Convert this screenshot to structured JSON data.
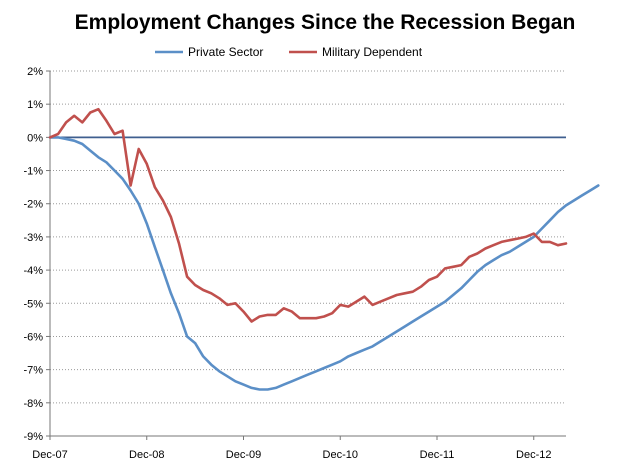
{
  "chart_data": {
    "type": "line",
    "title": "Employment Changes Since the Recession Began",
    "xlabel": "",
    "ylabel": "",
    "x_ticks": [
      "Dec-07",
      "Dec-08",
      "Dec-09",
      "Dec-10",
      "Dec-11",
      "Dec-12"
    ],
    "y_ticks": [
      "2%",
      "1%",
      "0%",
      "-1%",
      "-2%",
      "-3%",
      "-4%",
      "-5%",
      "-6%",
      "-7%",
      "-8%",
      "-9%"
    ],
    "ylim": [
      -9,
      2
    ],
    "x_range_months": [
      0,
      64
    ],
    "grid": "horizontal dotted",
    "legend_position": "top-center",
    "series": [
      {
        "name": "Private Sector",
        "color": "#5B8FC7",
        "points": [
          [
            0,
            0
          ],
          [
            1,
            0
          ],
          [
            2,
            -0.05
          ],
          [
            3,
            -0.1
          ],
          [
            4,
            -0.2
          ],
          [
            5,
            -0.4
          ],
          [
            6,
            -0.6
          ],
          [
            7,
            -0.75
          ],
          [
            8,
            -1.0
          ],
          [
            9,
            -1.25
          ],
          [
            10,
            -1.6
          ],
          [
            11,
            -2.0
          ],
          [
            12,
            -2.6
          ],
          [
            13,
            -3.3
          ],
          [
            14,
            -4.0
          ],
          [
            15,
            -4.7
          ],
          [
            16,
            -5.3
          ],
          [
            17,
            -6.0
          ],
          [
            18,
            -6.2
          ],
          [
            19,
            -6.6
          ],
          [
            20,
            -6.85
          ],
          [
            21,
            -7.05
          ],
          [
            22,
            -7.2
          ],
          [
            23,
            -7.35
          ],
          [
            24,
            -7.45
          ],
          [
            25,
            -7.55
          ],
          [
            26,
            -7.6
          ],
          [
            27,
            -7.6
          ],
          [
            28,
            -7.55
          ],
          [
            29,
            -7.45
          ],
          [
            30,
            -7.35
          ],
          [
            31,
            -7.25
          ],
          [
            32,
            -7.15
          ],
          [
            33,
            -7.05
          ],
          [
            34,
            -6.95
          ],
          [
            35,
            -6.85
          ],
          [
            36,
            -6.75
          ],
          [
            37,
            -6.6
          ],
          [
            38,
            -6.5
          ],
          [
            39,
            -6.4
          ],
          [
            40,
            -6.3
          ],
          [
            41,
            -6.15
          ],
          [
            42,
            -6.0
          ],
          [
            43,
            -5.85
          ],
          [
            44,
            -5.7
          ],
          [
            45,
            -5.55
          ],
          [
            46,
            -5.4
          ],
          [
            47,
            -5.25
          ],
          [
            48,
            -5.1
          ],
          [
            49,
            -4.95
          ],
          [
            50,
            -4.75
          ],
          [
            51,
            -4.55
          ],
          [
            52,
            -4.3
          ],
          [
            53,
            -4.05
          ],
          [
            54,
            -3.85
          ],
          [
            55,
            -3.7
          ],
          [
            56,
            -3.55
          ],
          [
            57,
            -3.45
          ],
          [
            58,
            -3.3
          ],
          [
            59,
            -3.15
          ],
          [
            60,
            -3.0
          ],
          [
            61,
            -2.75
          ],
          [
            62,
            -2.5
          ],
          [
            63,
            -2.25
          ],
          [
            64,
            -2.05
          ],
          [
            65,
            -1.9
          ],
          [
            66,
            -1.75
          ],
          [
            67,
            -1.6
          ],
          [
            68,
            -1.45
          ]
        ]
      },
      {
        "name": "Military Dependent",
        "color": "#C0504D",
        "points": [
          [
            0,
            0
          ],
          [
            1,
            0.1
          ],
          [
            2,
            0.45
          ],
          [
            3,
            0.65
          ],
          [
            4,
            0.45
          ],
          [
            5,
            0.75
          ],
          [
            6,
            0.85
          ],
          [
            7,
            0.5
          ],
          [
            8,
            0.1
          ],
          [
            9,
            0.2
          ],
          [
            10,
            -1.45
          ],
          [
            11,
            -0.35
          ],
          [
            12,
            -0.8
          ],
          [
            13,
            -1.5
          ],
          [
            14,
            -1.9
          ],
          [
            15,
            -2.4
          ],
          [
            16,
            -3.2
          ],
          [
            17,
            -4.2
          ],
          [
            18,
            -4.45
          ],
          [
            19,
            -4.6
          ],
          [
            20,
            -4.7
          ],
          [
            21,
            -4.85
          ],
          [
            22,
            -5.05
          ],
          [
            23,
            -5.0
          ],
          [
            24,
            -5.25
          ],
          [
            25,
            -5.55
          ],
          [
            26,
            -5.4
          ],
          [
            27,
            -5.35
          ],
          [
            28,
            -5.35
          ],
          [
            29,
            -5.15
          ],
          [
            30,
            -5.25
          ],
          [
            31,
            -5.45
          ],
          [
            32,
            -5.45
          ],
          [
            33,
            -5.45
          ],
          [
            34,
            -5.4
          ],
          [
            35,
            -5.3
          ],
          [
            36,
            -5.05
          ],
          [
            37,
            -5.1
          ],
          [
            38,
            -4.95
          ],
          [
            39,
            -4.8
          ],
          [
            40,
            -5.05
          ],
          [
            41,
            -4.95
          ],
          [
            42,
            -4.85
          ],
          [
            43,
            -4.75
          ],
          [
            44,
            -4.7
          ],
          [
            45,
            -4.65
          ],
          [
            46,
            -4.5
          ],
          [
            47,
            -4.3
          ],
          [
            48,
            -4.2
          ],
          [
            49,
            -3.95
          ],
          [
            50,
            -3.9
          ],
          [
            51,
            -3.85
          ],
          [
            52,
            -3.6
          ],
          [
            53,
            -3.5
          ],
          [
            54,
            -3.35
          ],
          [
            55,
            -3.25
          ],
          [
            56,
            -3.15
          ],
          [
            57,
            -3.1
          ],
          [
            58,
            -3.05
          ],
          [
            59,
            -3.0
          ],
          [
            60,
            -2.9
          ],
          [
            61,
            -3.15
          ],
          [
            62,
            -3.15
          ],
          [
            63,
            -3.25
          ],
          [
            64,
            -3.2
          ]
        ]
      }
    ]
  }
}
